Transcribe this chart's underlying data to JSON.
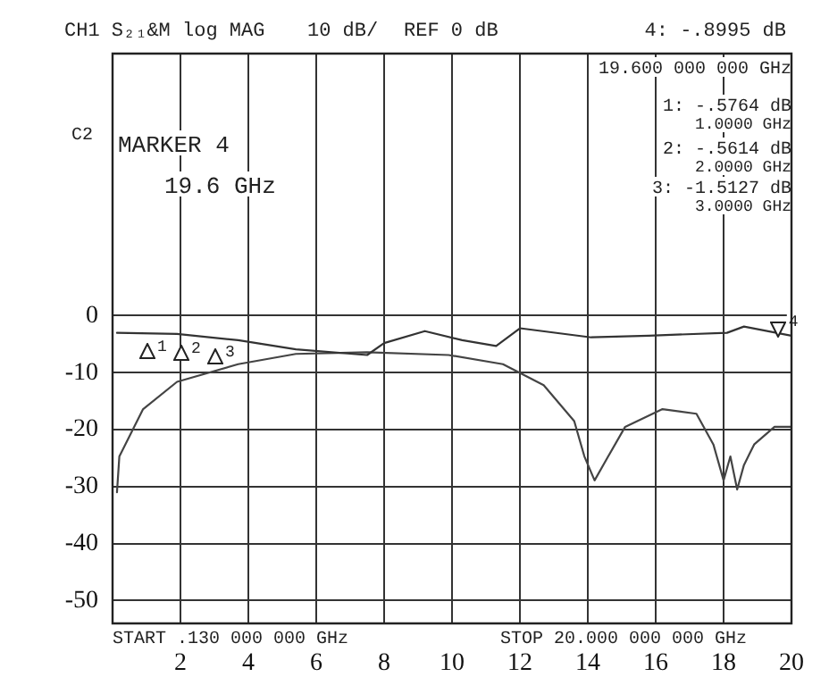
{
  "chart_data": {
    "type": "line",
    "xlim": [
      0,
      20
    ],
    "xticks": [
      2,
      4,
      6,
      8,
      10,
      12,
      14,
      16,
      18,
      20
    ],
    "ylim": [
      -54,
      46
    ],
    "yticks": [
      0,
      -10,
      -20,
      -30,
      -40,
      -50
    ],
    "grid": true,
    "legend": false,
    "marker": "none",
    "line_style": "solid",
    "series": [
      {
        "color": "#333333",
        "x": [
          0.13,
          1.9,
          3.7,
          5.4,
          7.5,
          8.0,
          9.2,
          10.3,
          11.3,
          12.0,
          14.1,
          15.8,
          18.1,
          18.6,
          20
        ],
        "values": [
          -3,
          -3.2,
          -4.3,
          -5.9,
          -6.9,
          -4.8,
          -2.7,
          -4.3,
          -5.3,
          -2.2,
          -3.8,
          -3.5,
          -3,
          -1.9,
          -3.5
        ]
      },
      {
        "color": "#444444",
        "x": [
          0.13,
          0.2,
          0.9,
          1.9,
          3.7,
          5.4,
          7.5,
          9.9,
          11.5,
          12.7,
          13.6,
          13.9,
          14.2,
          14.6,
          15.1,
          16.2,
          17.2,
          17.7,
          18.0,
          18.2,
          18.4,
          18.6,
          18.9,
          19.5,
          20
        ],
        "values": [
          -31,
          -24.7,
          -16.4,
          -11.6,
          -8.5,
          -6.7,
          -6.4,
          -6.9,
          -8.5,
          -12.2,
          -18.5,
          -24.7,
          -28.9,
          -24.7,
          -19.5,
          -16.4,
          -17.2,
          -22.6,
          -28.9,
          -24.7,
          -30.5,
          -26.2,
          -22.6,
          -19.5,
          -19.5
        ]
      }
    ],
    "annotations": [
      "CH1 S₂₁&M log MAG",
      "10 dB/",
      "REF 0 dB",
      "4: -.8995 dB",
      "19.600 000 000 GHz",
      "1: -.5764 dB",
      "1.0000 GHz",
      "2: -.5614 dB",
      "2.0000 GHz",
      "3: -1.5127 dB",
      "3.0000 GHz",
      "C2",
      "MARKER 4",
      "19.6 GHz",
      "START .130 000 000 GHz",
      "STOP 20.000 000 000 GHz",
      {
        "text": "1",
        "x": 1,
        "y": -3
      },
      {
        "text": "2",
        "x": 2,
        "y": -3.2
      },
      {
        "text": "3",
        "x": 3,
        "y": -3.9
      },
      {
        "text": "4",
        "x": 19.6,
        "y": -3.3
      }
    ]
  }
}
